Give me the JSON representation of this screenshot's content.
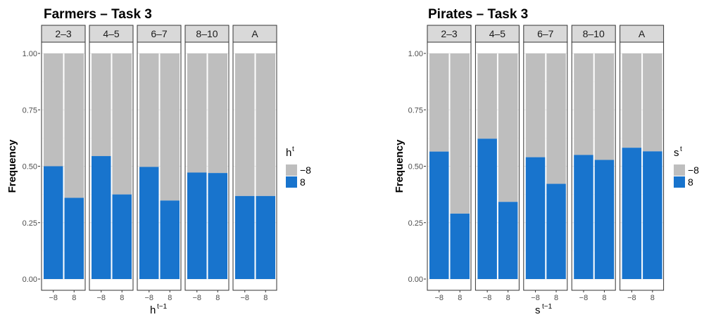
{
  "chart_data": [
    {
      "type": "bar",
      "stacked": true,
      "title": "Farmers – Task 3",
      "ylabel": "Frequency",
      "xlabel": "h",
      "xlabel_sup": "t−1",
      "legend_title": "h",
      "legend_title_sup": "t",
      "legend_position": "right",
      "ylim": [
        0,
        1
      ],
      "yticks": [
        "0.00",
        "0.25",
        "0.50",
        "0.75",
        "1.00"
      ],
      "ytick_values": [
        0,
        0.25,
        0.5,
        0.75,
        1
      ],
      "facets": [
        "2–3",
        "4–5",
        "6–7",
        "8–10",
        "A"
      ],
      "categories": [
        "−8",
        "8"
      ],
      "series": [
        {
          "name": "8",
          "color": "#1874cd",
          "values": [
            [
              0.5,
              0.36
            ],
            [
              0.545,
              0.375
            ],
            [
              0.497,
              0.348
            ],
            [
              0.472,
              0.47
            ],
            [
              0.368,
              0.368
            ]
          ]
        },
        {
          "name": "−8",
          "color": "#bebebe",
          "values": [
            [
              0.5,
              0.64
            ],
            [
              0.455,
              0.625
            ],
            [
              0.503,
              0.652
            ],
            [
              0.528,
              0.53
            ],
            [
              0.632,
              0.632
            ]
          ]
        }
      ],
      "grid": true
    },
    {
      "type": "bar",
      "stacked": true,
      "title": "Pirates – Task 3",
      "ylabel": "Frequency",
      "xlabel": "s",
      "xlabel_sup": "t−1",
      "legend_title": "s",
      "legend_title_sup": "t",
      "legend_position": "right",
      "ylim": [
        0,
        1
      ],
      "yticks": [
        "0.00",
        "0.25",
        "0.50",
        "0.75",
        "1.00"
      ],
      "ytick_values": [
        0,
        0.25,
        0.5,
        0.75,
        1
      ],
      "facets": [
        "2–3",
        "4–5",
        "6–7",
        "8–10",
        "A"
      ],
      "categories": [
        "−8",
        "8"
      ],
      "series": [
        {
          "name": "8",
          "color": "#1874cd",
          "values": [
            [
              0.565,
              0.29
            ],
            [
              0.622,
              0.342
            ],
            [
              0.54,
              0.422
            ],
            [
              0.55,
              0.528
            ],
            [
              0.582,
              0.566
            ]
          ]
        },
        {
          "name": "−8",
          "color": "#bebebe",
          "values": [
            [
              0.435,
              0.71
            ],
            [
              0.378,
              0.658
            ],
            [
              0.46,
              0.578
            ],
            [
              0.45,
              0.472
            ],
            [
              0.418,
              0.434
            ]
          ]
        }
      ],
      "grid": true
    }
  ]
}
